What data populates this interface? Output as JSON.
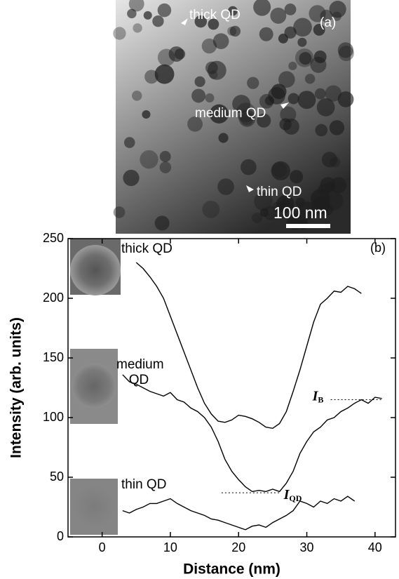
{
  "panel_a": {
    "label": "(a)",
    "annotations": [
      "thick QD",
      "medium QD",
      "thin QD"
    ],
    "scale_bar": "100 nm"
  },
  "chart_data": {
    "type": "line",
    "panel_label": "(b)",
    "xlabel": "Distance (nm)",
    "ylabel": "Intensity (arb. units)",
    "xlim": [
      -5,
      43
    ],
    "ylim": [
      0,
      250
    ],
    "xticks": [
      0,
      10,
      20,
      30,
      40
    ],
    "yticks": [
      0,
      50,
      100,
      150,
      200,
      250
    ],
    "series": [
      {
        "name": "thick QD",
        "color": "#000000",
        "x": [
          5,
          6,
          7,
          8,
          9,
          10,
          11,
          12,
          13,
          14,
          15,
          16,
          17,
          18,
          19,
          20,
          21,
          22,
          23,
          24,
          25,
          26,
          27,
          28,
          29,
          30,
          31,
          32,
          33,
          34,
          35,
          36,
          37,
          38
        ],
        "values": [
          230,
          225,
          218,
          210,
          200,
          185,
          170,
          155,
          140,
          125,
          112,
          103,
          97,
          96,
          98,
          102,
          101,
          99,
          96,
          92,
          91,
          95,
          105,
          122,
          140,
          160,
          180,
          195,
          200,
          206,
          205,
          210,
          208,
          204
        ]
      },
      {
        "name": "medium QD",
        "color": "#000000",
        "x": [
          3,
          4,
          5,
          6,
          7,
          8,
          9,
          10,
          11,
          12,
          13,
          14,
          15,
          16,
          17,
          18,
          19,
          20,
          21,
          22,
          23,
          24,
          25,
          26,
          27,
          28,
          29,
          30,
          31,
          32,
          33,
          34,
          35,
          36,
          37,
          38,
          39,
          40,
          41
        ],
        "values": [
          136,
          130,
          128,
          125,
          122,
          120,
          118,
          121,
          115,
          113,
          108,
          105,
          100,
          92,
          80,
          65,
          55,
          48,
          42,
          38,
          39,
          38,
          40,
          38,
          45,
          55,
          70,
          80,
          88,
          92,
          98,
          100,
          105,
          108,
          112,
          115,
          112,
          117,
          116
        ]
      },
      {
        "name": "thin QD",
        "color": "#000000",
        "x": [
          3,
          4,
          5,
          6,
          7,
          8,
          9,
          10,
          11,
          12,
          13,
          14,
          15,
          16,
          17,
          18,
          19,
          20,
          21,
          22,
          23,
          24,
          25,
          26,
          27,
          28,
          29,
          30,
          31,
          32,
          33,
          34,
          35,
          36,
          37
        ],
        "values": [
          22,
          20,
          23,
          25,
          28,
          28,
          30,
          32,
          28,
          25,
          22,
          20,
          18,
          15,
          14,
          12,
          10,
          8,
          6,
          9,
          10,
          8,
          12,
          15,
          18,
          22,
          30,
          28,
          25,
          30,
          28,
          32,
          30,
          34,
          30
        ]
      }
    ],
    "reference_lines": [
      {
        "label": "I",
        "sub": "B",
        "y": 115,
        "x": [
          33.5,
          41
        ]
      },
      {
        "label": "I",
        "sub": "QD",
        "y": 37,
        "x": [
          17.5,
          26
        ]
      }
    ]
  }
}
